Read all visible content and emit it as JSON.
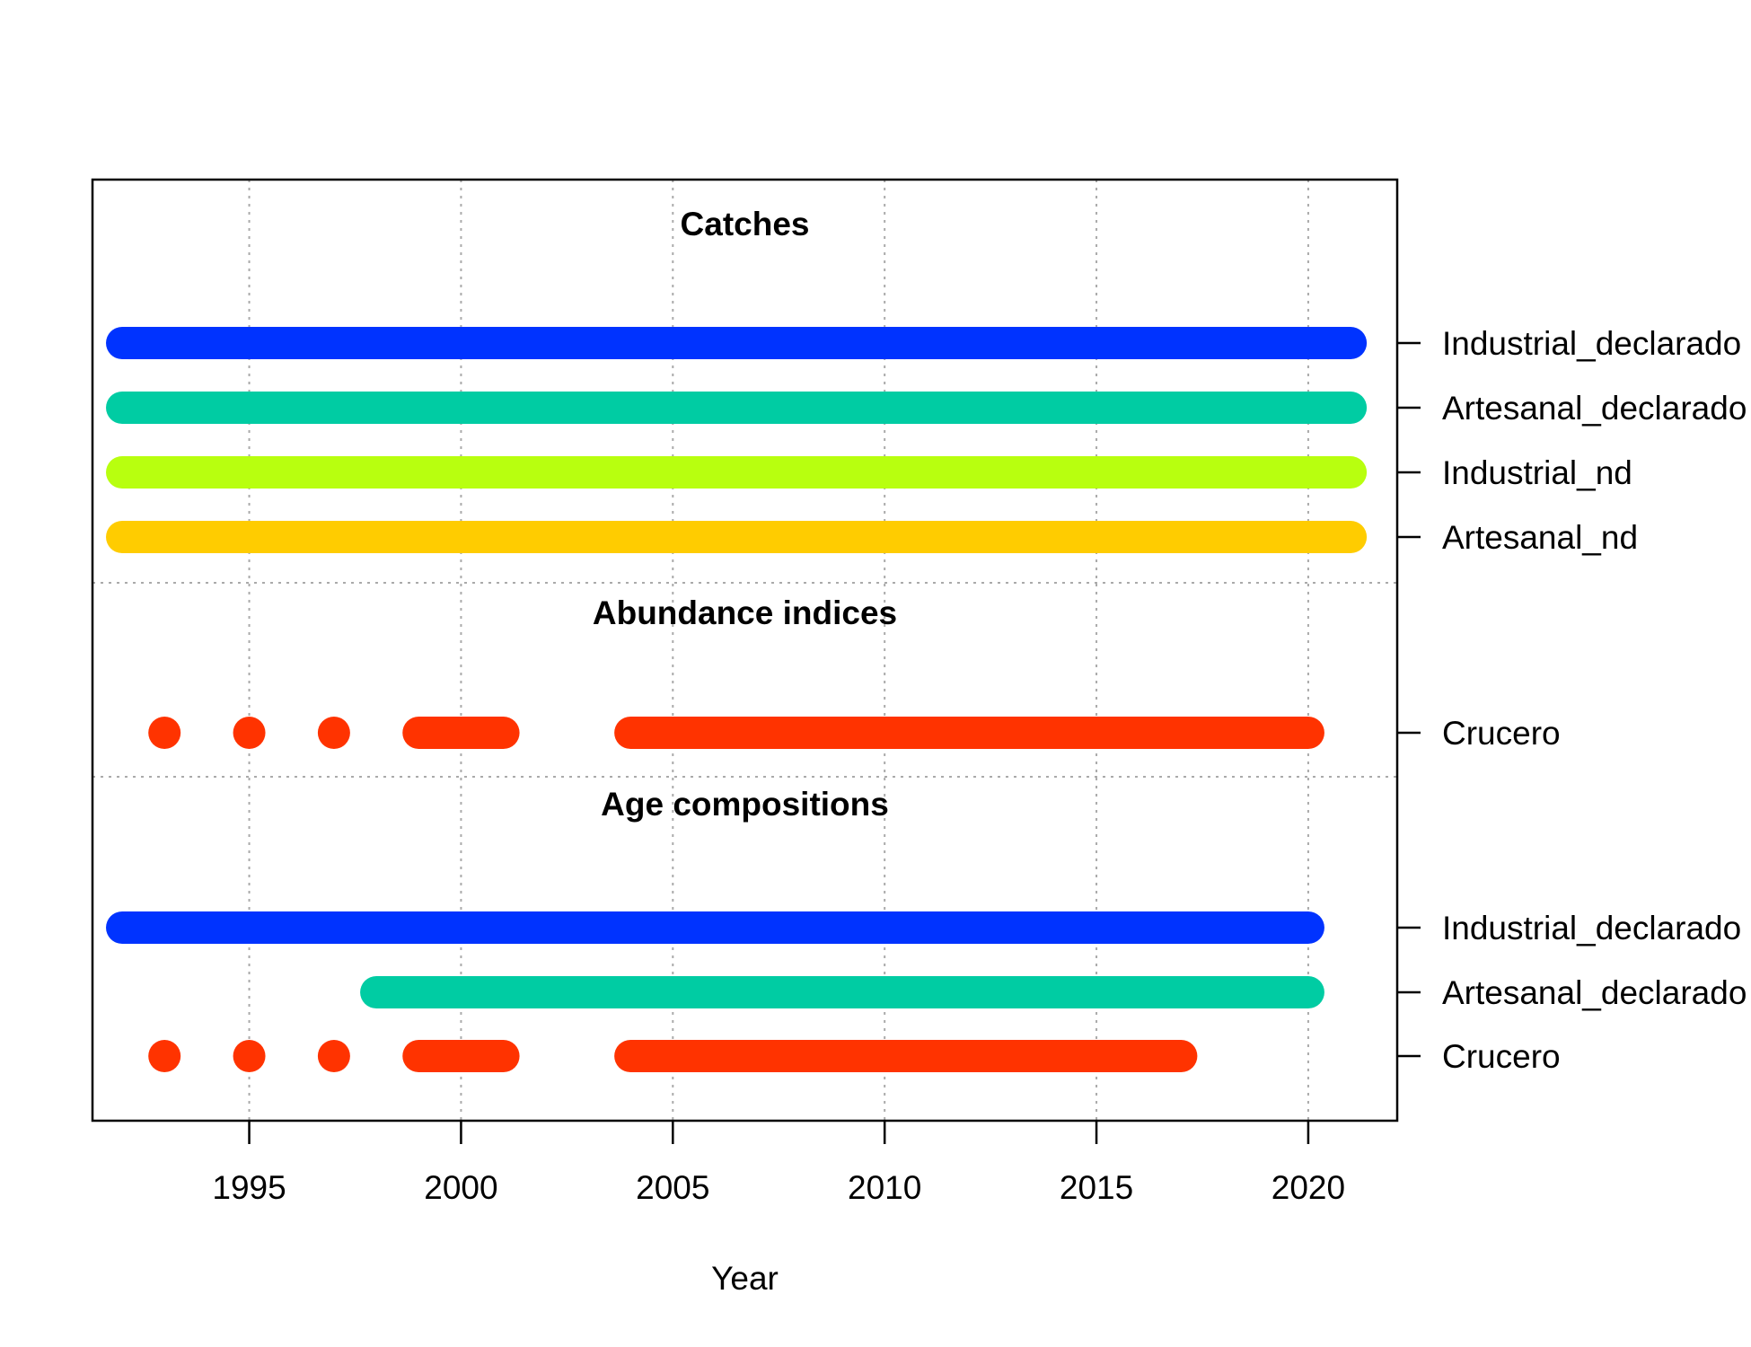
{
  "chart_data": {
    "type": "timeline",
    "xlabel": "Year",
    "xlim": [
      1991.3,
      2022.1
    ],
    "x_ticks": [
      1995,
      2000,
      2005,
      2010,
      2015,
      2020
    ],
    "grid": true,
    "sections": [
      {
        "title": "Catches",
        "rows": [
          {
            "label": "Industrial_declarado",
            "color": "#0033FF",
            "segments": [
              [
                1992,
                2021
              ]
            ]
          },
          {
            "label": "Artesanal_declarado",
            "color": "#00CCA3",
            "segments": [
              [
                1992,
                2021
              ]
            ]
          },
          {
            "label": "Industrial_nd",
            "color": "#B8FF0F",
            "segments": [
              [
                1992,
                2021
              ]
            ]
          },
          {
            "label": "Artesanal_nd",
            "color": "#FFCC00",
            "segments": [
              [
                1992,
                2021
              ]
            ]
          }
        ]
      },
      {
        "title": "Abundance indices",
        "rows": [
          {
            "label": "Crucero",
            "color": "#FF3300",
            "segments": [
              [
                1993,
                1993
              ],
              [
                1995,
                1995
              ],
              [
                1997,
                1997
              ],
              [
                1999,
                2001
              ],
              [
                2004,
                2020
              ]
            ]
          }
        ]
      },
      {
        "title": "Age compositions",
        "rows": [
          {
            "label": "Industrial_declarado",
            "color": "#0033FF",
            "segments": [
              [
                1992,
                2020
              ]
            ]
          },
          {
            "label": "Artesanal_declarado",
            "color": "#00CCA3",
            "segments": [
              [
                1998,
                2020
              ]
            ]
          },
          {
            "label": "Crucero",
            "color": "#FF3300",
            "segments": [
              [
                1993,
                1993
              ],
              [
                1995,
                1995
              ],
              [
                1997,
                1997
              ],
              [
                1999,
                2001
              ],
              [
                2004,
                2017
              ]
            ]
          }
        ]
      }
    ]
  }
}
